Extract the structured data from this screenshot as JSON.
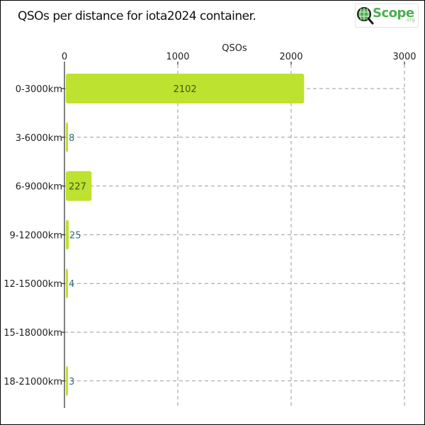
{
  "header": {
    "title": "QSOs per distance for iota2024 container.",
    "logo_text": "Scope",
    "logo_sub": ".org",
    "logo_icon": "q-globe-icon"
  },
  "chart_data": {
    "type": "bar",
    "orientation": "horizontal",
    "title": "QSOs per distance for iota2024 container.",
    "xlabel": "QSOs",
    "ylabel": "",
    "x_axis_position": "top",
    "xlim": [
      0,
      3000
    ],
    "xticks": [
      0,
      1000,
      2000,
      3000
    ],
    "categories": [
      "0-3000km",
      "3-6000km",
      "6-9000km",
      "9-12000km",
      "12-15000km",
      "15-18000km",
      "18-21000km"
    ],
    "values": [
      2102,
      8,
      227,
      25,
      4,
      0,
      3
    ],
    "labels": [
      "2102",
      "8",
      "227",
      "25",
      "4",
      "",
      "3"
    ],
    "grid": true,
    "colors": {
      "bar": "#bde22f",
      "grid": "#999999",
      "label": "#3a6f7f"
    }
  }
}
